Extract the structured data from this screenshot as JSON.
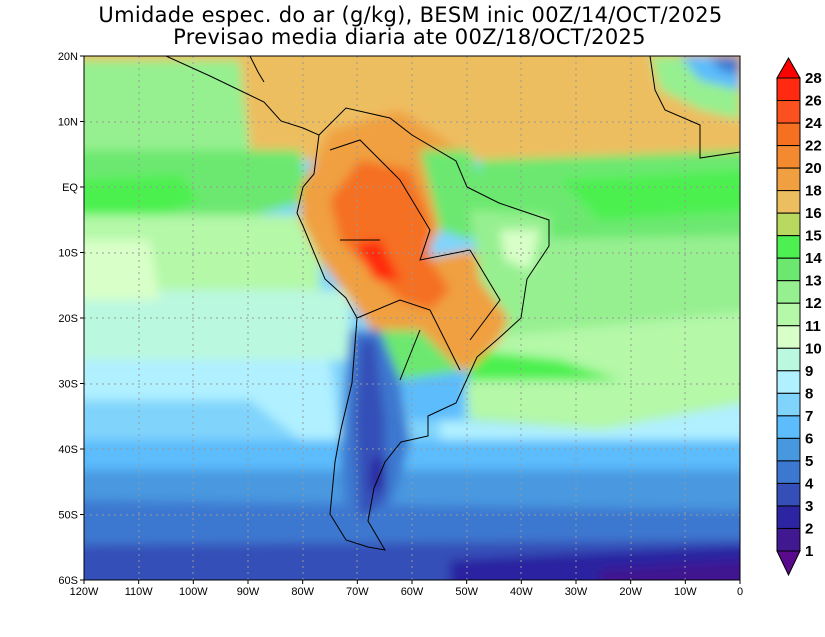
{
  "title": {
    "line1": "Umidade espec. do ar (g/kg), BESM inic 00Z/14/OCT/2025",
    "line2": "Previsao media diaria ate 00Z/18/OCT/2025"
  },
  "axes": {
    "lat_labels": [
      "20N",
      "10N",
      "EQ",
      "10S",
      "20S",
      "30S",
      "40S",
      "50S",
      "60S"
    ],
    "lon_labels": [
      "120W",
      "110W",
      "100W",
      "90W",
      "80W",
      "70W",
      "60W",
      "50W",
      "40W",
      "30W",
      "20W",
      "10W",
      "0"
    ]
  },
  "colorbar": {
    "labels": [
      "28",
      "26",
      "24",
      "22",
      "20",
      "18",
      "16",
      "15",
      "14",
      "13",
      "12",
      "11",
      "10",
      "9",
      "8",
      "7",
      "6",
      "5",
      "4",
      "3",
      "2",
      "1"
    ],
    "colors": [
      "#ff2a10",
      "#fb5020",
      "#f57020",
      "#f38a30",
      "#f0a040",
      "#edbe60",
      "#b8d860",
      "#4cf050",
      "#6ce870",
      "#96f090",
      "#b4f8a8",
      "#d8ffc8",
      "#baf8e0",
      "#b0f0ff",
      "#80d4fc",
      "#5cbcfc",
      "#4898e0",
      "#3c78d0",
      "#3450b8",
      "#2c24a0",
      "#401890"
    ],
    "over_color": "#ff0000",
    "under_color": "#5a0a8c"
  }
}
